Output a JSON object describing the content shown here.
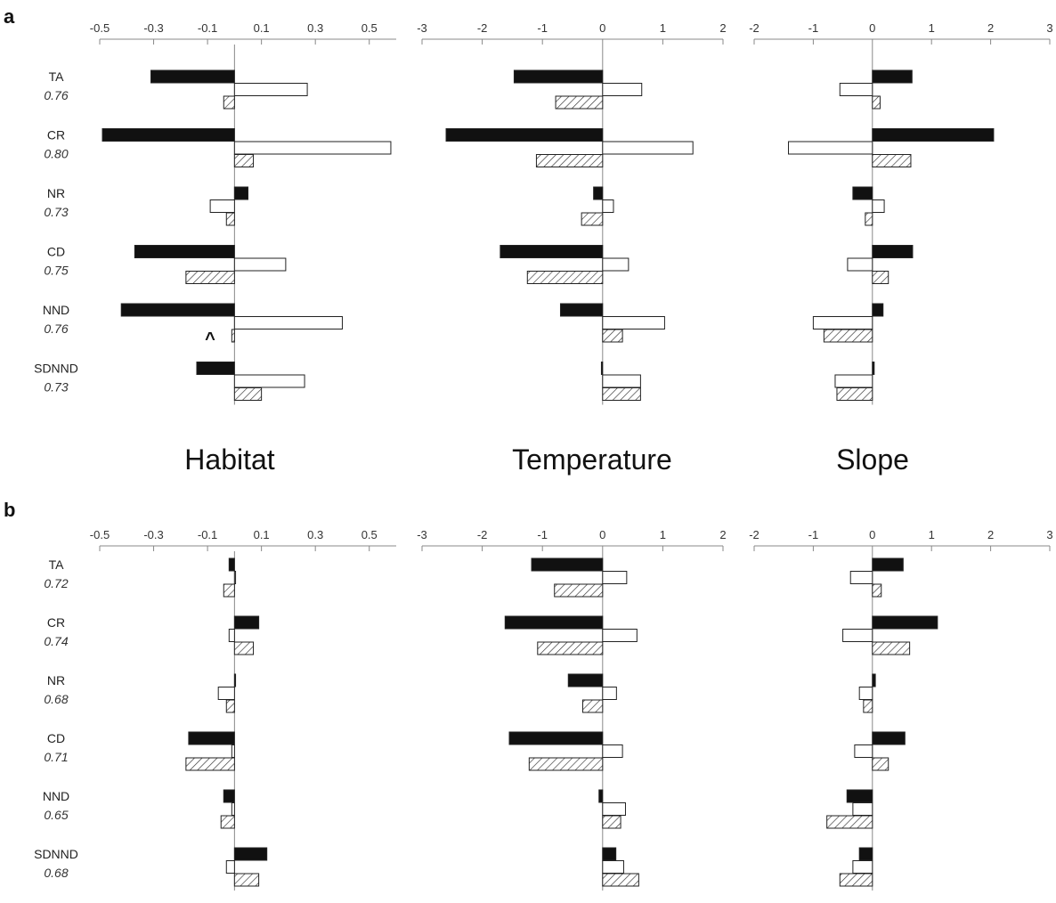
{
  "colors": {
    "dark": "#111111",
    "open": "#ffffff",
    "hatch": "#333333",
    "axis": "#888888"
  },
  "chart_data": [
    {
      "type": "bar",
      "panel": "a",
      "subplot": "Habitat",
      "title": "Habitat",
      "xlim": [
        -0.5,
        0.6
      ],
      "ticks": [
        -0.5,
        -0.3,
        -0.1,
        0.1,
        0.3,
        0.5
      ],
      "categories": [
        "TA",
        "CR",
        "NR",
        "CD",
        "NND",
        "SDNND"
      ],
      "values_r2": [
        "0.76",
        "0.80",
        "0.73",
        "0.75",
        "0.76",
        "0.73"
      ],
      "series": [
        {
          "style": "solid",
          "values": [
            -0.31,
            -0.49,
            0.05,
            -0.37,
            -0.42,
            -0.14
          ]
        },
        {
          "style": "open",
          "values": [
            0.27,
            0.58,
            -0.09,
            0.19,
            0.4,
            0.26
          ]
        },
        {
          "style": "hatched",
          "values": [
            -0.04,
            0.07,
            -0.03,
            -0.18,
            -0.01,
            0.1
          ]
        }
      ],
      "annotation": {
        "text": "^",
        "category": "NND"
      }
    },
    {
      "type": "bar",
      "panel": "a",
      "subplot": "Temperature",
      "title": "Temperature",
      "xlim": [
        -3,
        2
      ],
      "ticks": [
        -3,
        -2,
        -1,
        0,
        1,
        2
      ],
      "categories": [
        "TA",
        "CR",
        "NR",
        "CD",
        "NND",
        "SDNND"
      ],
      "series": [
        {
          "style": "solid",
          "values": [
            -1.47,
            -2.6,
            -0.15,
            -1.7,
            -0.7,
            -0.02
          ]
        },
        {
          "style": "open",
          "values": [
            0.65,
            1.5,
            0.18,
            0.43,
            1.03,
            0.63
          ]
        },
        {
          "style": "hatched",
          "values": [
            -0.78,
            -1.1,
            -0.35,
            -1.25,
            0.33,
            0.63
          ]
        }
      ]
    },
    {
      "type": "bar",
      "panel": "a",
      "subplot": "Slope",
      "title": "Slope",
      "xlim": [
        -2,
        3
      ],
      "ticks": [
        -2,
        -1,
        0,
        1,
        2,
        3
      ],
      "categories": [
        "TA",
        "CR",
        "NR",
        "CD",
        "NND",
        "SDNND"
      ],
      "series": [
        {
          "style": "solid",
          "values": [
            0.67,
            2.05,
            -0.33,
            0.68,
            0.18,
            0.03
          ]
        },
        {
          "style": "open",
          "values": [
            -0.55,
            -1.42,
            0.2,
            -0.42,
            -1.0,
            -0.63
          ]
        },
        {
          "style": "hatched",
          "values": [
            0.13,
            0.65,
            -0.12,
            0.27,
            -0.82,
            -0.6
          ]
        }
      ]
    },
    {
      "type": "bar",
      "panel": "b",
      "subplot": "Habitat",
      "xlim": [
        -0.5,
        0.6
      ],
      "ticks": [
        -0.5,
        -0.3,
        -0.1,
        0.1,
        0.3,
        0.5
      ],
      "categories": [
        "TA",
        "CR",
        "NR",
        "CD",
        "NND",
        "SDNND"
      ],
      "values_r2": [
        "0.72",
        "0.74",
        "0.68",
        "0.71",
        "0.65",
        "0.68"
      ],
      "series": [
        {
          "style": "solid",
          "values": [
            -0.02,
            0.09,
            0.0,
            -0.17,
            -0.04,
            0.12
          ]
        },
        {
          "style": "open",
          "values": [
            0.0,
            -0.02,
            -0.06,
            -0.01,
            -0.01,
            -0.03
          ]
        },
        {
          "style": "hatched",
          "values": [
            -0.04,
            0.07,
            -0.03,
            -0.18,
            -0.05,
            0.09
          ]
        }
      ]
    },
    {
      "type": "bar",
      "panel": "b",
      "subplot": "Temperature",
      "xlim": [
        -3,
        2
      ],
      "ticks": [
        -3,
        -2,
        -1,
        0,
        1,
        2
      ],
      "categories": [
        "TA",
        "CR",
        "NR",
        "CD",
        "NND",
        "SDNND"
      ],
      "series": [
        {
          "style": "solid",
          "values": [
            -1.18,
            -1.62,
            -0.57,
            -1.55,
            -0.06,
            0.22
          ]
        },
        {
          "style": "open",
          "values": [
            0.4,
            0.57,
            0.23,
            0.33,
            0.38,
            0.35
          ]
        },
        {
          "style": "hatched",
          "values": [
            -0.8,
            -1.08,
            -0.33,
            -1.22,
            0.3,
            0.6
          ]
        }
      ]
    },
    {
      "type": "bar",
      "panel": "b",
      "subplot": "Slope",
      "xlim": [
        -2,
        3
      ],
      "ticks": [
        -2,
        -1,
        0,
        1,
        2,
        3
      ],
      "categories": [
        "TA",
        "CR",
        "NR",
        "CD",
        "NND",
        "SDNND"
      ],
      "series": [
        {
          "style": "solid",
          "values": [
            0.52,
            1.1,
            0.05,
            0.55,
            -0.43,
            -0.22
          ]
        },
        {
          "style": "open",
          "values": [
            -0.37,
            -0.5,
            -0.22,
            -0.3,
            -0.33,
            -0.33
          ]
        },
        {
          "style": "hatched",
          "values": [
            0.15,
            0.63,
            -0.15,
            0.27,
            -0.77,
            -0.55
          ]
        }
      ]
    }
  ],
  "labels": {
    "panel_a": "a",
    "panel_b": "b",
    "title_habitat": "Habitat",
    "title_temperature": "Temperature",
    "title_slope": "Slope"
  }
}
